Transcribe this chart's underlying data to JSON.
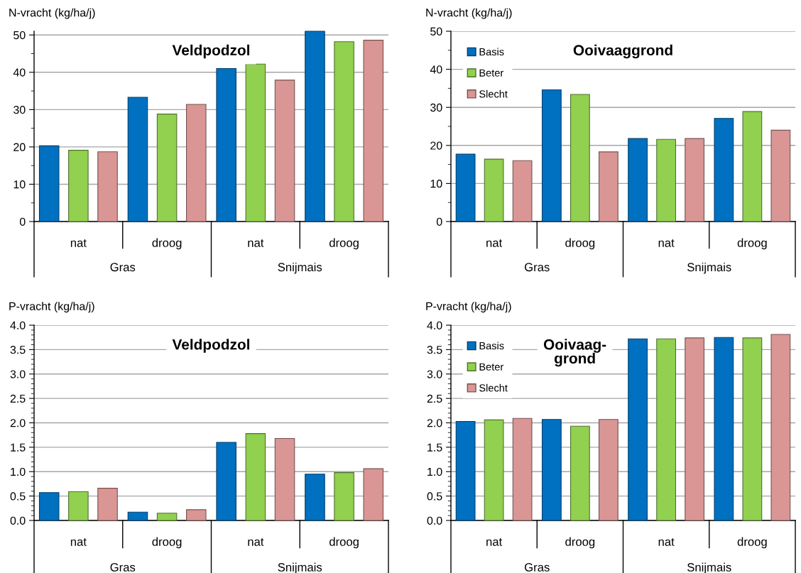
{
  "chart_data": [
    {
      "type": "bar",
      "title": "Veldpodzol",
      "ylabel": "N-vracht (kg/ha/j)",
      "categories": [
        "nat",
        "droog",
        "nat",
        "droog"
      ],
      "annotations": [
        "Gras",
        "Snijmais"
      ],
      "series": [
        {
          "color": "#0070c0",
          "values": [
            20.3,
            33.3,
            41.0,
            51.0
          ]
        },
        {
          "color": "#92d050",
          "values": [
            19.1,
            28.8,
            42.2,
            48.2
          ]
        },
        {
          "color": "#d99694",
          "values": [
            18.7,
            31.4,
            37.9,
            48.6
          ]
        }
      ],
      "ylim": [
        0,
        51
      ],
      "yticks": [
        0,
        10,
        20,
        30,
        40,
        50
      ],
      "grid": "y"
    },
    {
      "type": "bar",
      "title": "Ooivaaggrond",
      "ylabel": "N-vracht (kg/ha/j)",
      "categories": [
        "nat",
        "droog",
        "nat",
        "droog"
      ],
      "annotations": [
        "Gras",
        "Snijmais"
      ],
      "series": [
        {
          "name": "Basis",
          "color": "#0070c0",
          "values": [
            17.7,
            34.6,
            21.8,
            27.1
          ]
        },
        {
          "name": "Beter",
          "color": "#92d050",
          "values": [
            16.4,
            33.4,
            21.6,
            28.9
          ]
        },
        {
          "name": "Slecht",
          "color": "#d99694",
          "values": [
            16.0,
            18.3,
            21.8,
            24.0
          ]
        }
      ],
      "ylim": [
        0,
        50
      ],
      "yticks": [
        0,
        10,
        20,
        30,
        40,
        50
      ],
      "grid": "y",
      "legend": "top left"
    },
    {
      "type": "bar",
      "title": "Veldpodzol",
      "ylabel": "P-vracht (kg/ha/j)",
      "categories": [
        "nat",
        "droog",
        "nat",
        "droog"
      ],
      "annotations": [
        "Gras",
        "Snijmais"
      ],
      "series": [
        {
          "color": "#0070c0",
          "values": [
            0.57,
            0.17,
            1.6,
            0.95
          ]
        },
        {
          "color": "#92d050",
          "values": [
            0.59,
            0.15,
            1.78,
            0.98
          ]
        },
        {
          "color": "#d99694",
          "values": [
            0.66,
            0.22,
            1.68,
            1.06
          ]
        }
      ],
      "ylim": [
        0,
        4
      ],
      "yticks": [
        {
          "value": 0,
          "label": "0.0"
        },
        0.5,
        {
          "value": 1,
          "label": "1.0"
        },
        1.5,
        {
          "value": 2,
          "label": "2.0"
        },
        2.5,
        {
          "value": 3,
          "label": "3.0"
        },
        3.5,
        {
          "value": 4,
          "label": "4.0"
        }
      ],
      "grid": "y"
    },
    {
      "type": "bar",
      "title": "Ooivaag-\ngrond",
      "ylabel": "P-vracht (kg/ha/j)",
      "categories": [
        "nat",
        "droog",
        "nat",
        "droog"
      ],
      "annotations": [
        "Gras",
        "Snijmais"
      ],
      "series": [
        {
          "name": "Basis",
          "color": "#0070c0",
          "values": [
            2.03,
            2.07,
            3.72,
            3.75
          ]
        },
        {
          "name": "Beter",
          "color": "#92d050",
          "values": [
            2.06,
            1.93,
            3.72,
            3.74
          ]
        },
        {
          "name": "Slecht",
          "color": "#d99694",
          "values": [
            2.09,
            2.07,
            3.74,
            3.81
          ]
        }
      ],
      "ylim": [
        0,
        4
      ],
      "yticks": [
        {
          "value": 0,
          "label": "0.0"
        },
        0.5,
        {
          "value": 1,
          "label": "1.0"
        },
        1.5,
        {
          "value": 2,
          "label": "2.0"
        },
        2.5,
        {
          "value": 3,
          "label": "3.0"
        },
        3.5,
        {
          "value": 4,
          "label": "4.0"
        }
      ],
      "grid": "y",
      "legend": "top left"
    }
  ]
}
